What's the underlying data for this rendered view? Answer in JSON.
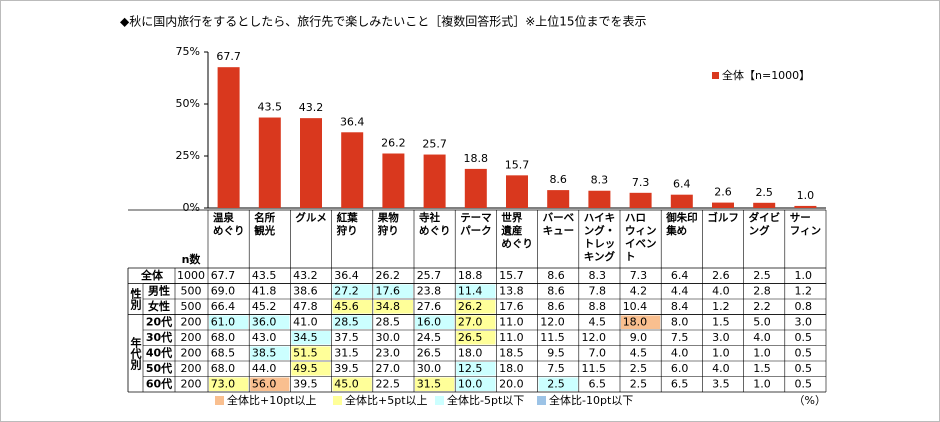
{
  "title": "◆秋に国内旅行をするとしたら、旅行先で楽しみたいこと［複数回答形式］※上位15位までを表示",
  "chart_data": {
    "type": "bar",
    "categories": [
      "温泉\nめぐり",
      "名所\n観光",
      "グルメ",
      "紅葉\n狩り",
      "果物\n狩り",
      "寺社\nめぐり",
      "テーマ\nパーク",
      "世界\n遺産\nめぐり",
      "バーベ\nキュー",
      "ハイキ\nング・\nトレッ\nキング",
      "ハロ\nウィン\nイベン\nト",
      "御朱印\n集め",
      "ゴルフ",
      "ダイビ\nング",
      "サー\nフィン"
    ],
    "series": [
      {
        "name": "全体【n=1000】",
        "color": "#d9381e",
        "values": [
          67.7,
          43.5,
          43.2,
          36.4,
          26.2,
          25.7,
          18.8,
          15.7,
          8.6,
          8.3,
          7.3,
          6.4,
          2.6,
          2.5,
          1.0
        ],
        "value_labels": [
          "67.7",
          "43.5",
          "43.2",
          "36.4",
          "26.2",
          "25.7",
          "18.8",
          "15.7",
          "8.6",
          "8.3",
          "7.3",
          "6.4",
          "2.6",
          "2.5",
          "1.0"
        ]
      }
    ],
    "ylim": [
      0,
      75
    ],
    "yticks": [
      {
        "value": 0,
        "label": "0%"
      },
      {
        "value": 25,
        "label": "25%"
      },
      {
        "value": 50,
        "label": "50%"
      },
      {
        "value": 75,
        "label": "75%"
      }
    ],
    "grid": false,
    "legend": "top-right"
  },
  "table": {
    "n_label": "n数",
    "total": {
      "label": "全体",
      "n": "1000",
      "values": [
        "67.7",
        "43.5",
        "43.2",
        "36.4",
        "26.2",
        "25.7",
        "18.8",
        "15.7",
        "8.6",
        "8.3",
        "7.3",
        "6.4",
        "2.6",
        "2.5",
        "1.0"
      ]
    },
    "groups": [
      {
        "label": "性別",
        "rows": [
          {
            "label": "男性",
            "n": "500",
            "values": [
              "69.0",
              "41.8",
              "38.6",
              "27.2",
              "17.6",
              "23.8",
              "11.4",
              "13.8",
              "8.6",
              "7.8",
              "4.2",
              "4.4",
              "4.0",
              "2.8",
              "1.2"
            ],
            "highlight": [
              null,
              null,
              null,
              2,
              2,
              null,
              2,
              null,
              null,
              null,
              null,
              null,
              null,
              null,
              null
            ]
          },
          {
            "label": "女性",
            "n": "500",
            "values": [
              "66.4",
              "45.2",
              "47.8",
              "45.6",
              "34.8",
              "27.6",
              "26.2",
              "17.6",
              "8.6",
              "8.8",
              "10.4",
              "8.4",
              "1.2",
              "2.2",
              "0.8"
            ],
            "highlight": [
              null,
              null,
              null,
              1,
              1,
              null,
              1,
              null,
              null,
              null,
              null,
              null,
              null,
              null,
              null
            ]
          }
        ]
      },
      {
        "label": "年代別",
        "rows": [
          {
            "label": "20代",
            "n": "200",
            "values": [
              "61.0",
              "36.0",
              "41.0",
              "28.5",
              "28.5",
              "16.0",
              "27.0",
              "11.0",
              "12.0",
              "4.5",
              "18.0",
              "8.0",
              "1.5",
              "5.0",
              "3.0"
            ],
            "highlight": [
              2,
              2,
              null,
              2,
              null,
              2,
              1,
              null,
              null,
              null,
              0,
              null,
              null,
              null,
              null
            ]
          },
          {
            "label": "30代",
            "n": "200",
            "values": [
              "68.0",
              "43.0",
              "34.5",
              "37.5",
              "30.0",
              "24.5",
              "26.5",
              "11.0",
              "11.5",
              "12.0",
              "9.0",
              "7.5",
              "3.0",
              "4.0",
              "0.5"
            ],
            "highlight": [
              null,
              null,
              2,
              null,
              null,
              null,
              1,
              null,
              null,
              null,
              null,
              null,
              null,
              null,
              null
            ]
          },
          {
            "label": "40代",
            "n": "200",
            "values": [
              "68.5",
              "38.5",
              "51.5",
              "31.5",
              "23.0",
              "26.5",
              "18.0",
              "18.5",
              "9.5",
              "7.0",
              "4.5",
              "4.0",
              "1.0",
              "1.0",
              "0.5"
            ],
            "highlight": [
              null,
              2,
              1,
              null,
              null,
              null,
              null,
              null,
              null,
              null,
              null,
              null,
              null,
              null,
              null
            ]
          },
          {
            "label": "50代",
            "n": "200",
            "values": [
              "68.0",
              "44.0",
              "49.5",
              "39.5",
              "27.0",
              "30.0",
              "12.5",
              "18.0",
              "7.5",
              "11.5",
              "2.5",
              "6.0",
              "4.0",
              "1.5",
              "0.5"
            ],
            "highlight": [
              null,
              null,
              1,
              null,
              null,
              null,
              2,
              null,
              null,
              null,
              null,
              null,
              null,
              null,
              null
            ]
          },
          {
            "label": "60代",
            "n": "200",
            "values": [
              "73.0",
              "56.0",
              "39.5",
              "45.0",
              "22.5",
              "31.5",
              "10.0",
              "20.0",
              "2.5",
              "6.5",
              "2.5",
              "6.5",
              "3.5",
              "1.0",
              "0.5"
            ],
            "highlight": [
              1,
              0,
              null,
              1,
              null,
              1,
              2,
              null,
              2,
              null,
              null,
              null,
              null,
              null,
              null
            ]
          }
        ]
      }
    ],
    "legend": [
      {
        "label": "全体比+10pt以上",
        "color": "#f9bf8f"
      },
      {
        "label": "全体比+5pt以上",
        "color": "#ffff99"
      },
      {
        "label": "全体比-5pt以下",
        "color": "#ccffff"
      },
      {
        "label": "全体比-10pt以下",
        "color": "#9cc3e6"
      }
    ],
    "unit": "（%）"
  }
}
